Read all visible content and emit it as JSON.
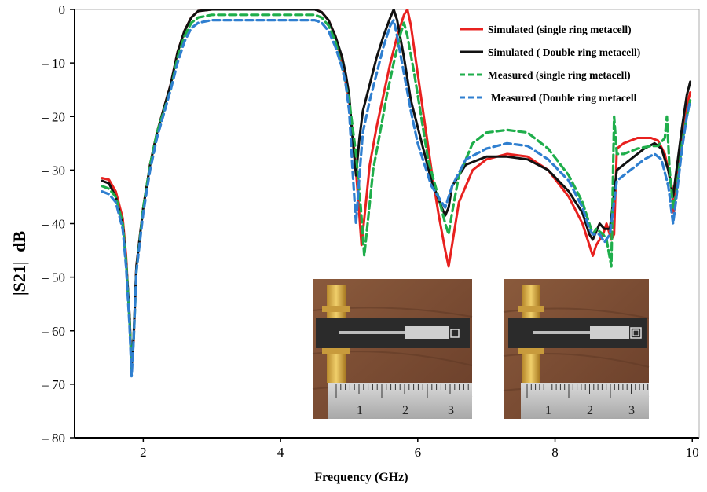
{
  "chart_data": {
    "type": "line",
    "title": "",
    "xlabel": "Frequency (GHz)",
    "ylabel_main": "|S21|",
    "ylabel_unit": "dB",
    "xticks": [
      2,
      4,
      6,
      8,
      10
    ],
    "yticks": [
      0,
      -10,
      -20,
      -30,
      -40,
      -50,
      -60,
      -70,
      -80
    ],
    "grid": false,
    "legend_position": "top-right",
    "series": [
      {
        "name": "Simulated (single ring metacell)",
        "color": "#e8211f",
        "dash": "solid",
        "points": [
          [
            1.4,
            -31.5
          ],
          [
            1.5,
            -31.8
          ],
          [
            1.6,
            -34
          ],
          [
            1.7,
            -39
          ],
          [
            1.75,
            -46
          ],
          [
            1.8,
            -58
          ],
          [
            1.83,
            -66
          ],
          [
            1.86,
            -62
          ],
          [
            1.9,
            -48
          ],
          [
            2.0,
            -37
          ],
          [
            2.1,
            -29
          ],
          [
            2.2,
            -23
          ],
          [
            2.4,
            -14
          ],
          [
            2.5,
            -8
          ],
          [
            2.6,
            -4
          ],
          [
            2.7,
            -1.5
          ],
          [
            2.8,
            -0.3
          ],
          [
            3.0,
            0
          ],
          [
            3.5,
            0
          ],
          [
            4.0,
            0
          ],
          [
            4.5,
            0
          ],
          [
            4.6,
            -0.5
          ],
          [
            4.7,
            -2
          ],
          [
            4.8,
            -5
          ],
          [
            4.9,
            -10
          ],
          [
            5.0,
            -17
          ],
          [
            5.08,
            -27
          ],
          [
            5.13,
            -35
          ],
          [
            5.18,
            -44
          ],
          [
            5.23,
            -38
          ],
          [
            5.3,
            -29
          ],
          [
            5.4,
            -22
          ],
          [
            5.5,
            -16
          ],
          [
            5.6,
            -10
          ],
          [
            5.7,
            -5
          ],
          [
            5.8,
            -1
          ],
          [
            5.85,
            0
          ],
          [
            5.9,
            -3
          ],
          [
            6.0,
            -12
          ],
          [
            6.1,
            -21
          ],
          [
            6.2,
            -30
          ],
          [
            6.3,
            -38
          ],
          [
            6.4,
            -45
          ],
          [
            6.45,
            -48
          ],
          [
            6.5,
            -44
          ],
          [
            6.6,
            -36
          ],
          [
            6.8,
            -30
          ],
          [
            7.0,
            -28
          ],
          [
            7.3,
            -27
          ],
          [
            7.6,
            -27.5
          ],
          [
            7.9,
            -30
          ],
          [
            8.2,
            -35
          ],
          [
            8.4,
            -40
          ],
          [
            8.5,
            -44
          ],
          [
            8.55,
            -46
          ],
          [
            8.6,
            -44
          ],
          [
            8.7,
            -42
          ],
          [
            8.75,
            -40
          ],
          [
            8.82,
            -43
          ],
          [
            8.86,
            -42
          ],
          [
            8.9,
            -26
          ],
          [
            9.0,
            -25
          ],
          [
            9.2,
            -24
          ],
          [
            9.4,
            -24
          ],
          [
            9.5,
            -24.5
          ],
          [
            9.6,
            -27
          ],
          [
            9.7,
            -33
          ],
          [
            9.73,
            -38
          ],
          [
            9.76,
            -34
          ],
          [
            9.85,
            -25
          ],
          [
            9.92,
            -18
          ],
          [
            9.97,
            -15.5
          ]
        ]
      },
      {
        "name": "Simulated ( Double ring metacell)",
        "color": "#111111",
        "dash": "solid",
        "points": [
          [
            1.4,
            -32
          ],
          [
            1.5,
            -32.5
          ],
          [
            1.6,
            -35
          ],
          [
            1.7,
            -40
          ],
          [
            1.75,
            -47
          ],
          [
            1.8,
            -57
          ],
          [
            1.83,
            -67
          ],
          [
            1.86,
            -61
          ],
          [
            1.9,
            -48
          ],
          [
            2.0,
            -37
          ],
          [
            2.1,
            -29
          ],
          [
            2.2,
            -23
          ],
          [
            2.4,
            -14
          ],
          [
            2.5,
            -8
          ],
          [
            2.6,
            -4
          ],
          [
            2.7,
            -1.5
          ],
          [
            2.8,
            -0.3
          ],
          [
            3.0,
            0
          ],
          [
            3.5,
            0
          ],
          [
            4.0,
            0
          ],
          [
            4.5,
            0
          ],
          [
            4.6,
            -0.5
          ],
          [
            4.7,
            -2
          ],
          [
            4.8,
            -5
          ],
          [
            4.9,
            -9
          ],
          [
            4.95,
            -12
          ],
          [
            5.0,
            -16
          ],
          [
            5.05,
            -24
          ],
          [
            5.1,
            -31
          ],
          [
            5.15,
            -24
          ],
          [
            5.2,
            -19
          ],
          [
            5.3,
            -14
          ],
          [
            5.4,
            -9
          ],
          [
            5.5,
            -5
          ],
          [
            5.6,
            -1.5
          ],
          [
            5.65,
            0
          ],
          [
            5.7,
            -2
          ],
          [
            5.8,
            -9
          ],
          [
            5.9,
            -17
          ],
          [
            6.0,
            -22
          ],
          [
            6.1,
            -27
          ],
          [
            6.2,
            -32
          ],
          [
            6.35,
            -37
          ],
          [
            6.4,
            -38.5
          ],
          [
            6.45,
            -37
          ],
          [
            6.5,
            -33
          ],
          [
            6.7,
            -29
          ],
          [
            7.0,
            -27.5
          ],
          [
            7.3,
            -27.5
          ],
          [
            7.6,
            -28
          ],
          [
            7.9,
            -30
          ],
          [
            8.2,
            -34
          ],
          [
            8.4,
            -38
          ],
          [
            8.5,
            -42
          ],
          [
            8.55,
            -43
          ],
          [
            8.65,
            -40
          ],
          [
            8.72,
            -41
          ],
          [
            8.8,
            -41
          ],
          [
            8.9,
            -30
          ],
          [
            9.1,
            -28
          ],
          [
            9.3,
            -26
          ],
          [
            9.45,
            -25
          ],
          [
            9.55,
            -26
          ],
          [
            9.65,
            -30
          ],
          [
            9.72,
            -35
          ],
          [
            9.75,
            -32
          ],
          [
            9.85,
            -22
          ],
          [
            9.92,
            -16
          ],
          [
            9.97,
            -13.5
          ]
        ]
      },
      {
        "name": "Measured (single ring metacell)",
        "color": "#1fae4b",
        "dash": "dashed",
        "points": [
          [
            1.4,
            -33
          ],
          [
            1.5,
            -33.5
          ],
          [
            1.6,
            -35
          ],
          [
            1.7,
            -40
          ],
          [
            1.75,
            -47
          ],
          [
            1.8,
            -58
          ],
          [
            1.83,
            -67
          ],
          [
            1.86,
            -62
          ],
          [
            1.9,
            -49
          ],
          [
            2.0,
            -37
          ],
          [
            2.1,
            -29
          ],
          [
            2.2,
            -23
          ],
          [
            2.4,
            -15
          ],
          [
            2.5,
            -9
          ],
          [
            2.6,
            -5
          ],
          [
            2.7,
            -2.5
          ],
          [
            2.8,
            -1.5
          ],
          [
            3.0,
            -1
          ],
          [
            3.5,
            -1
          ],
          [
            4.0,
            -1
          ],
          [
            4.5,
            -1
          ],
          [
            4.6,
            -1.5
          ],
          [
            4.7,
            -3
          ],
          [
            4.8,
            -6
          ],
          [
            4.9,
            -11
          ],
          [
            5.0,
            -17
          ],
          [
            5.1,
            -27
          ],
          [
            5.17,
            -37
          ],
          [
            5.22,
            -46
          ],
          [
            5.27,
            -40
          ],
          [
            5.35,
            -30
          ],
          [
            5.45,
            -23
          ],
          [
            5.55,
            -16
          ],
          [
            5.65,
            -10
          ],
          [
            5.75,
            -4.5
          ],
          [
            5.8,
            -2.5
          ],
          [
            5.85,
            -5
          ],
          [
            5.95,
            -12
          ],
          [
            6.05,
            -20
          ],
          [
            6.15,
            -28
          ],
          [
            6.3,
            -35
          ],
          [
            6.4,
            -40
          ],
          [
            6.45,
            -42
          ],
          [
            6.5,
            -38
          ],
          [
            6.6,
            -31
          ],
          [
            6.8,
            -25
          ],
          [
            7.0,
            -23
          ],
          [
            7.3,
            -22.5
          ],
          [
            7.6,
            -23
          ],
          [
            7.9,
            -26
          ],
          [
            8.2,
            -31
          ],
          [
            8.4,
            -36
          ],
          [
            8.5,
            -40
          ],
          [
            8.55,
            -42
          ],
          [
            8.6,
            -41
          ],
          [
            8.7,
            -42
          ],
          [
            8.75,
            -43
          ],
          [
            8.82,
            -48
          ],
          [
            8.86,
            -20
          ],
          [
            8.9,
            -27
          ],
          [
            9.0,
            -27
          ],
          [
            9.2,
            -26
          ],
          [
            9.4,
            -25.5
          ],
          [
            9.5,
            -25.5
          ],
          [
            9.6,
            -24
          ],
          [
            9.63,
            -20
          ],
          [
            9.67,
            -30
          ],
          [
            9.72,
            -37
          ],
          [
            9.76,
            -35
          ],
          [
            9.85,
            -25
          ],
          [
            9.92,
            -20
          ],
          [
            9.97,
            -17
          ]
        ]
      },
      {
        "name": "Measured (Double ring metacell",
        "color": "#2f7fd0",
        "dash": "dashed",
        "points": [
          [
            1.4,
            -34
          ],
          [
            1.5,
            -34.5
          ],
          [
            1.6,
            -36
          ],
          [
            1.7,
            -41
          ],
          [
            1.75,
            -48
          ],
          [
            1.8,
            -59
          ],
          [
            1.83,
            -68.5
          ],
          [
            1.86,
            -62
          ],
          [
            1.9,
            -49
          ],
          [
            2.0,
            -38
          ],
          [
            2.1,
            -30
          ],
          [
            2.2,
            -24
          ],
          [
            2.4,
            -15
          ],
          [
            2.5,
            -10
          ],
          [
            2.6,
            -6
          ],
          [
            2.7,
            -3.5
          ],
          [
            2.8,
            -2.5
          ],
          [
            3.0,
            -2
          ],
          [
            3.5,
            -2
          ],
          [
            4.0,
            -2
          ],
          [
            4.5,
            -2
          ],
          [
            4.6,
            -2.5
          ],
          [
            4.7,
            -4
          ],
          [
            4.8,
            -7
          ],
          [
            4.9,
            -11
          ],
          [
            4.95,
            -14
          ],
          [
            5.0,
            -19
          ],
          [
            5.05,
            -30
          ],
          [
            5.1,
            -40
          ],
          [
            5.15,
            -31
          ],
          [
            5.2,
            -23
          ],
          [
            5.3,
            -17
          ],
          [
            5.4,
            -12
          ],
          [
            5.5,
            -7
          ],
          [
            5.6,
            -3
          ],
          [
            5.65,
            -2
          ],
          [
            5.7,
            -5
          ],
          [
            5.8,
            -12
          ],
          [
            5.9,
            -19
          ],
          [
            6.0,
            -25
          ],
          [
            6.1,
            -29
          ],
          [
            6.2,
            -33
          ],
          [
            6.35,
            -36
          ],
          [
            6.4,
            -37
          ],
          [
            6.5,
            -33
          ],
          [
            6.7,
            -28
          ],
          [
            7.0,
            -26
          ],
          [
            7.3,
            -25
          ],
          [
            7.6,
            -25.5
          ],
          [
            7.9,
            -28
          ],
          [
            8.2,
            -32
          ],
          [
            8.4,
            -37
          ],
          [
            8.5,
            -41
          ],
          [
            8.55,
            -42
          ],
          [
            8.65,
            -42
          ],
          [
            8.72,
            -43.5
          ],
          [
            8.8,
            -42
          ],
          [
            8.9,
            -32
          ],
          [
            9.1,
            -30
          ],
          [
            9.3,
            -28
          ],
          [
            9.45,
            -27
          ],
          [
            9.55,
            -28
          ],
          [
            9.65,
            -33
          ],
          [
            9.72,
            -40
          ],
          [
            9.76,
            -36
          ],
          [
            9.85,
            -26
          ],
          [
            9.92,
            -20
          ],
          [
            9.97,
            -17
          ]
        ]
      }
    ],
    "inset_photos": [
      {
        "name": "single ring prototype",
        "ruler_labels": [
          "1",
          "2",
          "3"
        ]
      },
      {
        "name": "double ring prototype",
        "ruler_labels": [
          "1",
          "2",
          "3"
        ]
      }
    ]
  }
}
